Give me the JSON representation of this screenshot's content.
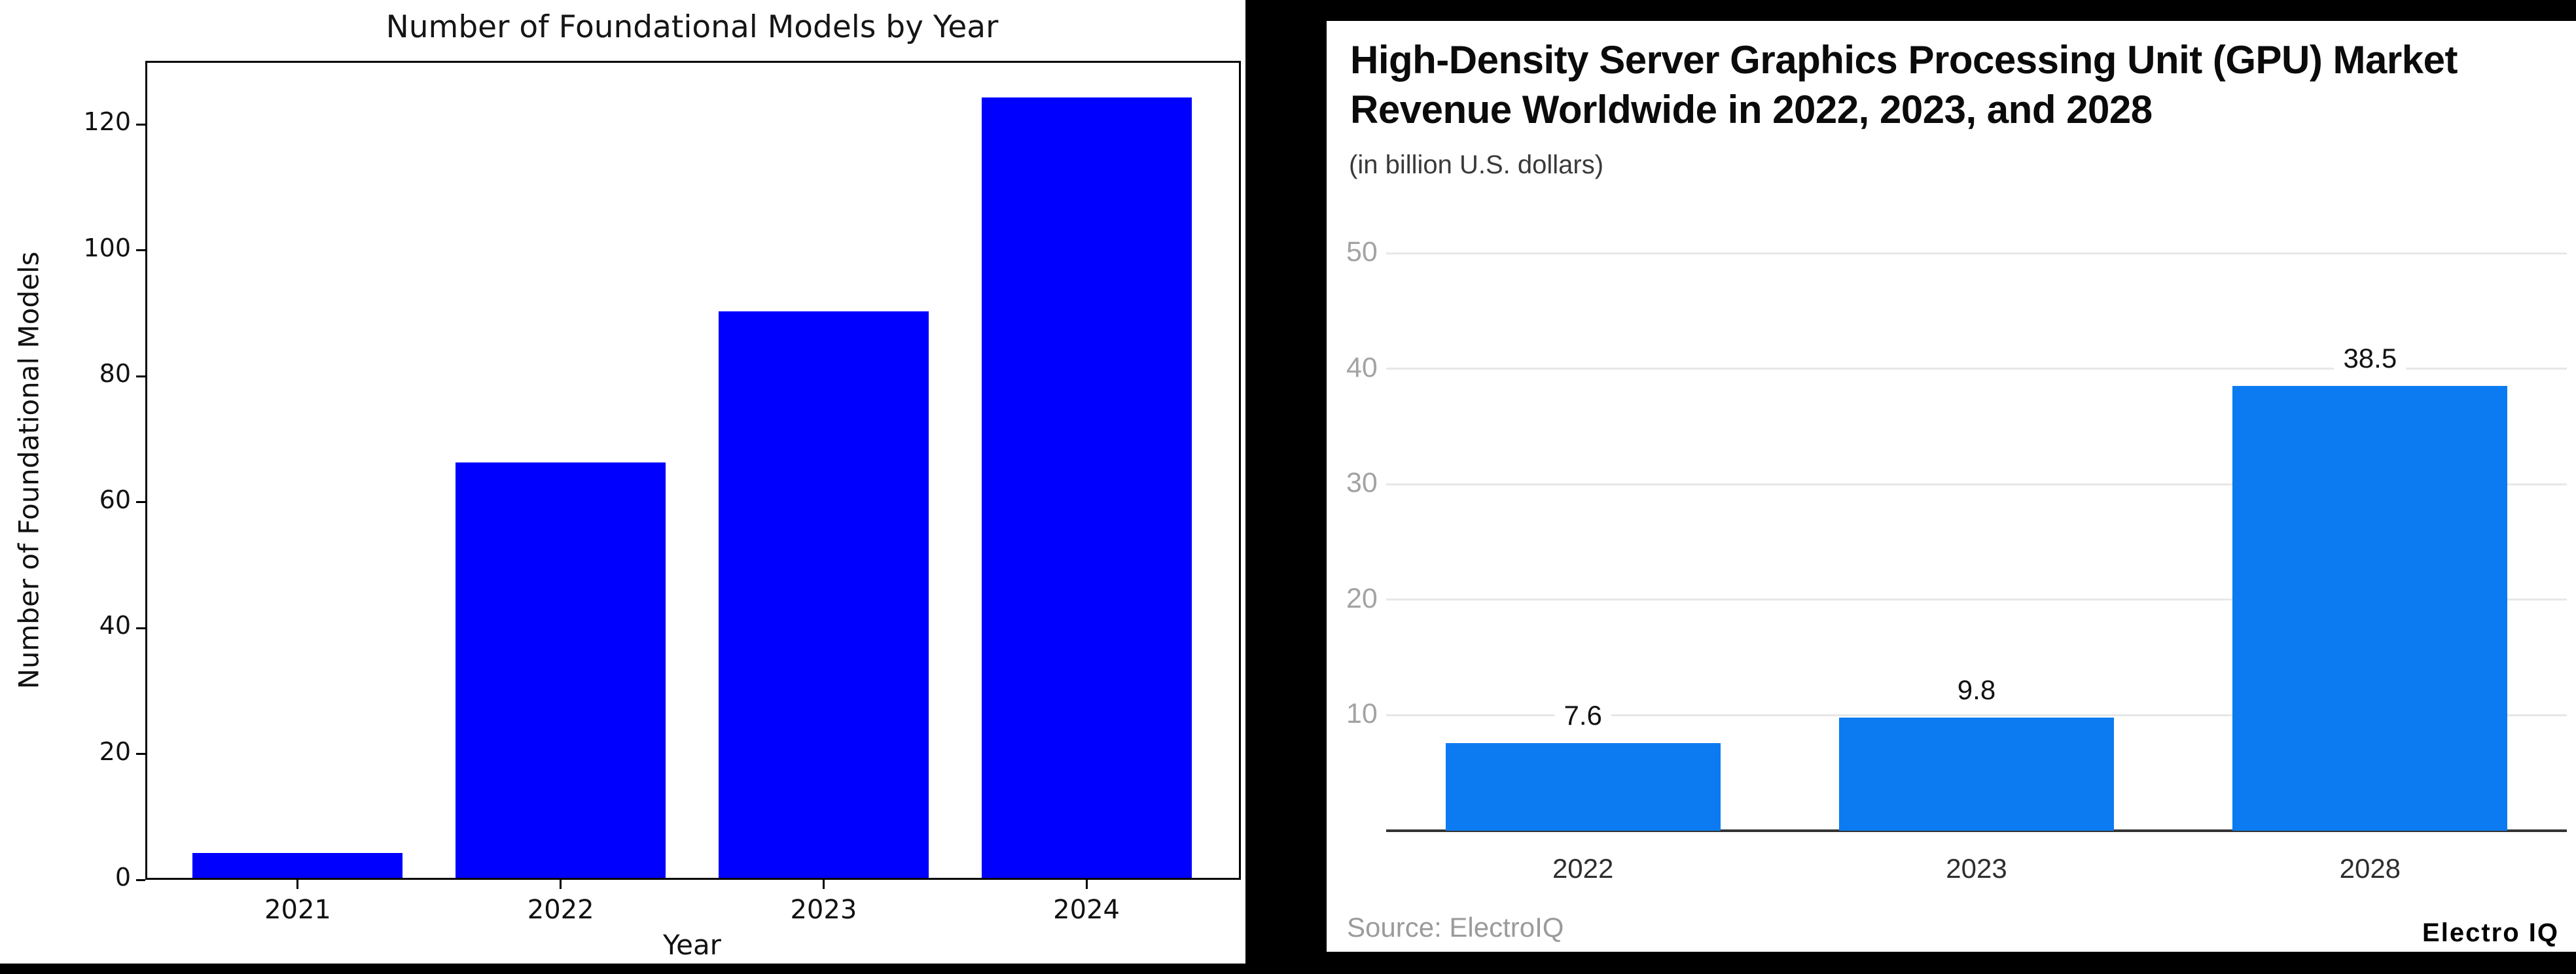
{
  "colors": {
    "canvas_background": "#000000",
    "left_bar_color": "#0000ff",
    "right_bar_color": "#0c7bf2",
    "gridline_color": "#e7e7e7",
    "axis_baseline_color": "#333333"
  },
  "chart_data": [
    {
      "id": "foundational-models-by-year",
      "type": "bar",
      "title": "Number of Foundational Models by Year",
      "xlabel": "Year",
      "ylabel": "Number of Foundational Models",
      "categories": [
        "2021",
        "2022",
        "2023",
        "2024"
      ],
      "values": [
        4,
        66,
        90,
        124
      ],
      "yticks": [
        0,
        20,
        40,
        60,
        80,
        100,
        120
      ],
      "ylim": [
        0,
        130
      ],
      "bar_color": "#0000ff",
      "grid": false,
      "legend": "none"
    },
    {
      "id": "gpu-market-revenue",
      "type": "bar",
      "title_line1": "High-Density Server Graphics Processing Unit (GPU) Market",
      "title_line2": "Revenue Worldwide in 2022, 2023, and 2028",
      "subtitle": "(in billion U.S. dollars)",
      "categories": [
        "2022",
        "2023",
        "2028"
      ],
      "values": [
        7.6,
        9.8,
        38.5
      ],
      "value_labels": [
        "7.6",
        "9.8",
        "38.5"
      ],
      "yticks": [
        10,
        20,
        30,
        40,
        50
      ],
      "ylim": [
        0,
        50
      ],
      "bar_color": "#0c7bf2",
      "grid": true,
      "legend": "none",
      "source": "Source: ElectroIQ",
      "logo": "Electro IQ"
    }
  ]
}
